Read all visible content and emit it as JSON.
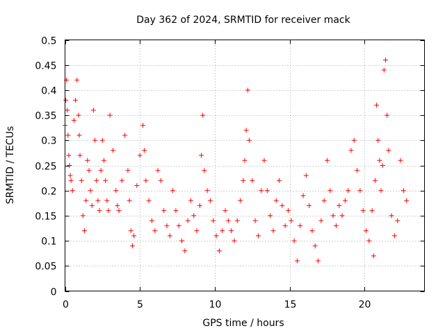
{
  "chart_data": {
    "type": "scatter",
    "title": "Day 362 of 2024, SRMTID for receiver mack",
    "xlabel": "GPS time / hours",
    "ylabel": "SRMTID / TECUs",
    "xlim": [
      0,
      24
    ],
    "ylim": [
      0,
      0.5
    ],
    "xticks": [
      0,
      5,
      10,
      15,
      20
    ],
    "yticks": [
      0,
      0.05,
      0.1,
      0.15,
      0.2,
      0.25,
      0.3,
      0.35,
      0.4,
      0.45,
      0.5
    ],
    "grid": true,
    "marker": "+",
    "color": "#ff0000",
    "series": [
      {
        "name": "SRMTID",
        "x": [
          0.0,
          0.05,
          0.1,
          0.15,
          0.2,
          0.25,
          0.3,
          0.35,
          0.4,
          0.5,
          0.6,
          0.7,
          0.8,
          0.9,
          0.95,
          1.0,
          1.1,
          1.2,
          1.3,
          1.4,
          1.5,
          1.6,
          1.7,
          1.8,
          1.9,
          2.0,
          2.1,
          2.2,
          2.3,
          2.4,
          2.5,
          2.6,
          2.7,
          2.8,
          2.9,
          3.0,
          3.2,
          3.4,
          3.5,
          3.6,
          3.8,
          4.0,
          4.2,
          4.3,
          4.4,
          4.5,
          4.6,
          4.8,
          5.0,
          5.2,
          5.3,
          5.4,
          5.6,
          5.8,
          6.0,
          6.2,
          6.4,
          6.6,
          6.8,
          7.0,
          7.2,
          7.4,
          7.6,
          7.8,
          8.0,
          8.2,
          8.4,
          8.6,
          8.8,
          9.0,
          9.1,
          9.2,
          9.3,
          9.5,
          9.7,
          9.9,
          10.1,
          10.3,
          10.5,
          10.7,
          10.9,
          11.1,
          11.3,
          11.5,
          11.7,
          11.9,
          12.0,
          12.1,
          12.2,
          12.3,
          12.5,
          12.7,
          12.9,
          13.1,
          13.3,
          13.5,
          13.7,
          13.9,
          14.1,
          14.3,
          14.5,
          14.7,
          14.9,
          15.1,
          15.3,
          15.5,
          15.7,
          15.9,
          16.1,
          16.3,
          16.5,
          16.7,
          16.9,
          17.1,
          17.3,
          17.5,
          17.7,
          17.9,
          18.1,
          18.3,
          18.5,
          18.7,
          18.9,
          19.1,
          19.3,
          19.5,
          19.7,
          19.9,
          20.1,
          20.3,
          20.5,
          20.6,
          20.7,
          20.8,
          20.9,
          21.0,
          21.1,
          21.2,
          21.3,
          21.4,
          21.5,
          21.6,
          21.8,
          22.0,
          22.2,
          22.4,
          22.6,
          22.8
        ],
        "y": [
          0.33,
          0.38,
          0.42,
          0.36,
          0.31,
          0.27,
          0.25,
          0.23,
          0.22,
          0.2,
          0.34,
          0.38,
          0.42,
          0.35,
          0.31,
          0.27,
          0.22,
          0.15,
          0.12,
          0.18,
          0.26,
          0.24,
          0.2,
          0.17,
          0.36,
          0.3,
          0.22,
          0.18,
          0.16,
          0.24,
          0.3,
          0.26,
          0.22,
          0.18,
          0.16,
          0.35,
          0.28,
          0.2,
          0.17,
          0.16,
          0.22,
          0.31,
          0.24,
          0.18,
          0.12,
          0.09,
          0.11,
          0.21,
          0.27,
          0.33,
          0.28,
          0.22,
          0.18,
          0.14,
          0.12,
          0.24,
          0.22,
          0.16,
          0.13,
          0.11,
          0.2,
          0.16,
          0.13,
          0.1,
          0.08,
          0.14,
          0.18,
          0.15,
          0.12,
          0.17,
          0.27,
          0.35,
          0.24,
          0.2,
          0.18,
          0.14,
          0.11,
          0.08,
          0.12,
          0.16,
          0.14,
          0.12,
          0.1,
          0.14,
          0.18,
          0.22,
          0.26,
          0.32,
          0.4,
          0.3,
          0.22,
          0.14,
          0.11,
          0.2,
          0.26,
          0.2,
          0.15,
          0.12,
          0.18,
          0.22,
          0.17,
          0.13,
          0.16,
          0.14,
          0.1,
          0.06,
          0.13,
          0.19,
          0.23,
          0.17,
          0.12,
          0.09,
          0.06,
          0.14,
          0.18,
          0.26,
          0.2,
          0.15,
          0.13,
          0.17,
          0.15,
          0.18,
          0.2,
          0.28,
          0.3,
          0.24,
          0.2,
          0.16,
          0.12,
          0.1,
          0.16,
          0.07,
          0.22,
          0.37,
          0.3,
          0.26,
          0.2,
          0.25,
          0.44,
          0.46,
          0.35,
          0.28,
          0.15,
          0.11,
          0.14,
          0.26,
          0.2,
          0.18
        ]
      }
    ]
  }
}
